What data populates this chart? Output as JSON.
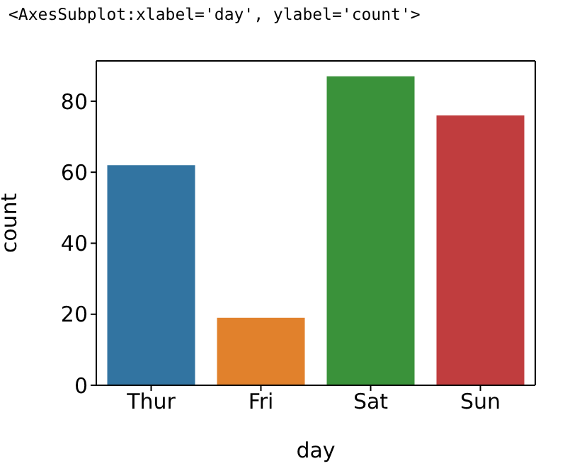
{
  "chart_data": {
    "type": "bar",
    "annotations": [
      "<AxesSubplot:xlabel='day', ylabel='count'>"
    ],
    "xlabel": "day",
    "ylabel": "count",
    "categories": [
      "Thur",
      "Fri",
      "Sat",
      "Sun"
    ],
    "values": [
      62,
      19,
      87,
      76
    ],
    "colors": [
      "#3274a1",
      "#e1812c",
      "#3a923a",
      "#c03d3e"
    ],
    "ylim": [
      0,
      91.35
    ],
    "yticks": [
      0,
      20,
      40,
      60,
      80
    ]
  }
}
